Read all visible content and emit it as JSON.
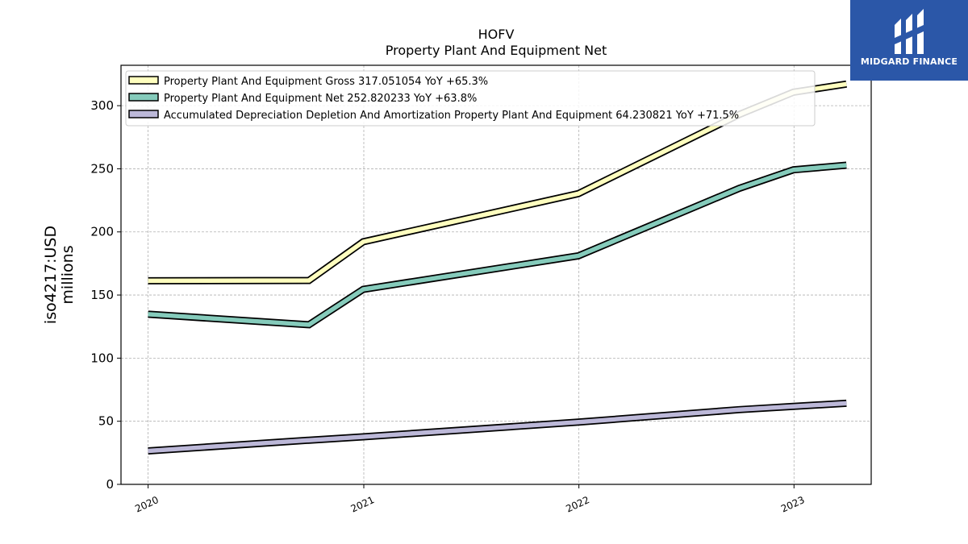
{
  "logo": {
    "text": "MIDGARD FINANCE"
  },
  "chart_data": {
    "type": "line",
    "title": "HOFV",
    "subtitle": "Property Plant And Equipment Net",
    "ylabel": "iso4217:USD",
    "ylabel2": "millions",
    "ylim": [
      0,
      332
    ],
    "xlim": [
      "2019-11-16",
      "2023-05-12"
    ],
    "grid": true,
    "legend_position": "top-left",
    "x_ticks": [
      {
        "date": "2020-01-01",
        "label": "2020"
      },
      {
        "date": "2021-01-01",
        "label": "2021"
      },
      {
        "date": "2022-01-01",
        "label": "2022"
      },
      {
        "date": "2023-01-01",
        "label": "2023"
      }
    ],
    "y_ticks": [
      0,
      50,
      100,
      150,
      200,
      250,
      300
    ],
    "x": [
      "2020-01-01",
      "2020-09-30",
      "2020-12-31",
      "2021-12-31",
      "2022-09-30",
      "2022-12-31",
      "2023-03-31"
    ],
    "series": [
      {
        "name": "Property Plant And Equipment Gross",
        "legend_label": "Property Plant And Equipment Gross  317.051054 YoY +65.3%",
        "color": "#ffffbf",
        "values": [
          161.3,
          161.5,
          192.2,
          230.3,
          293.0,
          310.7,
          317.1
        ]
      },
      {
        "name": "Property Plant And Equipment Net",
        "legend_label": "Property Plant And Equipment Net  252.820233 YoY +63.8%",
        "color": "#85cbbb",
        "values": [
          134.8,
          126.5,
          154.5,
          181.0,
          234.5,
          249.2,
          252.8
        ]
      },
      {
        "name": "Accumulated Depreciation Depletion And Amortization Property Plant And Equipment",
        "legend_label": "Accumulated Depreciation Depletion And Amortization Property Plant And Equipment  64.230821 YoY +71.5%",
        "color": "#bcb8d8",
        "values": [
          26.5,
          35.0,
          37.7,
          49.3,
          59.2,
          61.8,
          64.2
        ]
      }
    ]
  }
}
